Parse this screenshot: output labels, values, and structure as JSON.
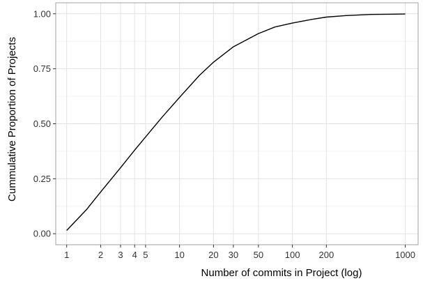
{
  "chart_data": {
    "type": "line",
    "title": "",
    "xlabel": "Number of commits in Project (log)",
    "ylabel": "Cummulative Proportion of Projects",
    "x_scale": "log",
    "xlim": [
      0.8,
      1300
    ],
    "ylim": [
      -0.05,
      1.05
    ],
    "grid": true,
    "legend": "none",
    "x_ticks": [
      {
        "value": 1,
        "label": "1"
      },
      {
        "value": 2,
        "label": "2"
      },
      {
        "value": 3,
        "label": "3"
      },
      {
        "value": 4,
        "label": "4"
      },
      {
        "value": 5,
        "label": "5"
      },
      {
        "value": 10,
        "label": "10"
      },
      {
        "value": 20,
        "label": "20"
      },
      {
        "value": 30,
        "label": "30"
      },
      {
        "value": 50,
        "label": "50"
      },
      {
        "value": 100,
        "label": "100"
      },
      {
        "value": 200,
        "label": "200"
      },
      {
        "value": 1000,
        "label": "1000"
      }
    ],
    "y_ticks": [
      {
        "value": 0.0,
        "label": "0.00"
      },
      {
        "value": 0.25,
        "label": "0.25"
      },
      {
        "value": 0.5,
        "label": "0.50"
      },
      {
        "value": 0.75,
        "label": "0.75"
      },
      {
        "value": 1.0,
        "label": "1.00"
      }
    ],
    "series": [
      {
        "color": "#000000",
        "x": [
          1,
          1.5,
          2,
          3,
          4,
          5,
          7,
          10,
          15,
          20,
          30,
          50,
          70,
          100,
          150,
          200,
          300,
          500,
          700,
          1000
        ],
        "y": [
          0.015,
          0.11,
          0.19,
          0.3,
          0.38,
          0.44,
          0.53,
          0.62,
          0.72,
          0.78,
          0.85,
          0.91,
          0.94,
          0.958,
          0.975,
          0.985,
          0.992,
          0.997,
          0.998,
          0.999
        ]
      }
    ],
    "colors": {
      "panel_background": "#ffffff",
      "panel_border": "#a0a0a0",
      "grid_major": "#e3e3e3",
      "grid_minor": "#f2f2f2",
      "line": "#000000"
    }
  }
}
